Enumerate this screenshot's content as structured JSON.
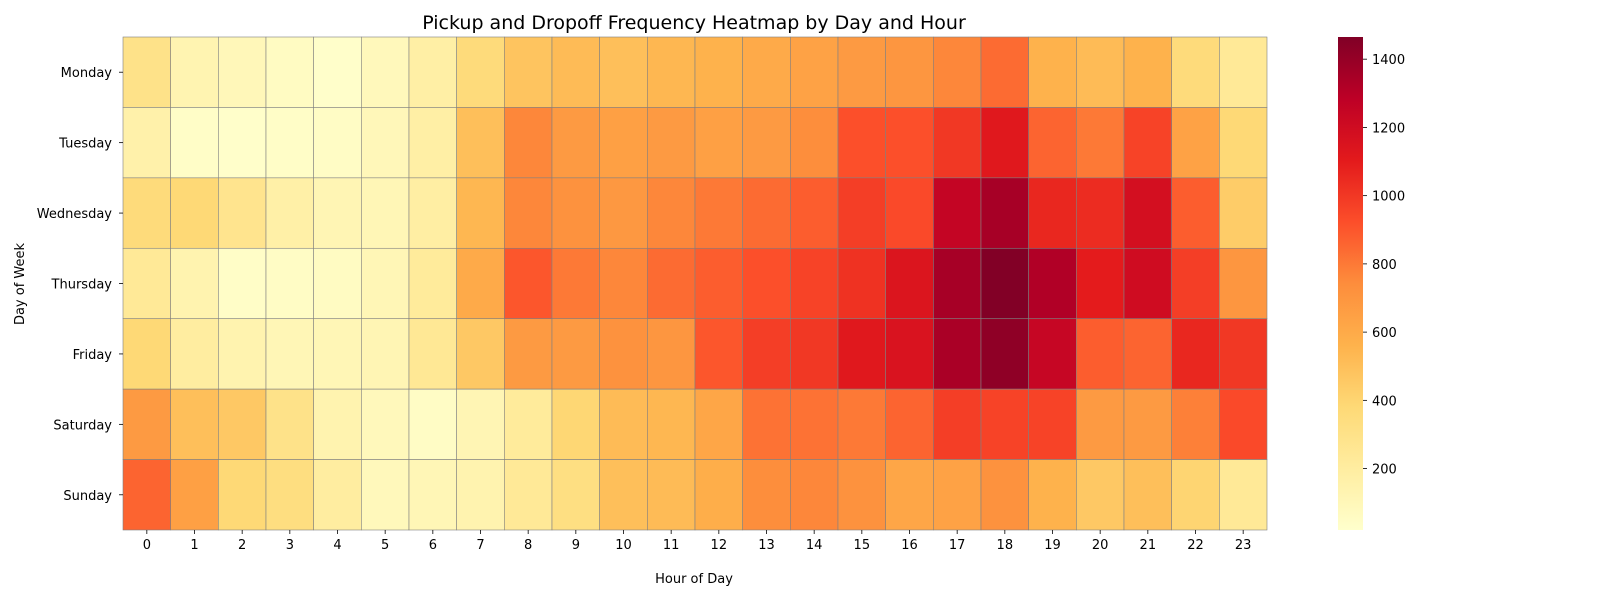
{
  "chart_data": {
    "type": "heatmap",
    "title": "Pickup and Dropoff Frequency Heatmap by Day and Hour",
    "xlabel": "Hour of Day",
    "ylabel": "Day of Week",
    "x": [
      "0",
      "1",
      "2",
      "3",
      "4",
      "5",
      "6",
      "7",
      "8",
      "9",
      "10",
      "11",
      "12",
      "13",
      "14",
      "15",
      "16",
      "17",
      "18",
      "19",
      "20",
      "21",
      "22",
      "23"
    ],
    "y": [
      "Monday",
      "Tuesday",
      "Wednesday",
      "Thursday",
      "Friday",
      "Saturday",
      "Sunday"
    ],
    "values": [
      [
        300,
        130,
        100,
        60,
        30,
        90,
        180,
        360,
        480,
        520,
        500,
        540,
        560,
        600,
        640,
        680,
        700,
        760,
        840,
        560,
        520,
        560,
        360,
        240
      ],
      [
        160,
        40,
        30,
        40,
        50,
        100,
        180,
        500,
        760,
        680,
        650,
        680,
        650,
        680,
        740,
        920,
        920,
        1000,
        1120,
        860,
        800,
        960,
        640,
        380
      ],
      [
        360,
        380,
        280,
        170,
        120,
        110,
        190,
        540,
        760,
        720,
        690,
        760,
        800,
        840,
        880,
        980,
        940,
        1250,
        1350,
        1060,
        1040,
        1180,
        880,
        440
      ],
      [
        240,
        140,
        40,
        50,
        60,
        110,
        220,
        600,
        900,
        800,
        760,
        840,
        880,
        920,
        960,
        1020,
        1140,
        1350,
        1460,
        1320,
        1100,
        1200,
        980,
        700
      ],
      [
        380,
        200,
        140,
        110,
        110,
        120,
        250,
        460,
        680,
        680,
        720,
        700,
        900,
        980,
        1000,
        1120,
        1150,
        1340,
        1420,
        1240,
        880,
        860,
        1060,
        1000
      ],
      [
        680,
        500,
        460,
        300,
        140,
        90,
        50,
        120,
        220,
        390,
        520,
        540,
        620,
        820,
        820,
        800,
        860,
        980,
        960,
        960,
        680,
        680,
        780,
        940
      ],
      [
        860,
        650,
        380,
        340,
        200,
        90,
        110,
        140,
        240,
        330,
        500,
        520,
        580,
        740,
        760,
        720,
        620,
        640,
        720,
        560,
        460,
        500,
        400,
        240
      ]
    ],
    "colorbar": {
      "min": 20,
      "max": 1465,
      "ticks": [
        200,
        400,
        600,
        800,
        1000,
        1200,
        1400
      ],
      "colormap": [
        "#ffffcc",
        "#ffeda0",
        "#fed976",
        "#feb24c",
        "#fd8d3c",
        "#fc4e2a",
        "#e31a1c",
        "#bd0026",
        "#800026"
      ]
    },
    "cell_border_color": "#808080"
  }
}
